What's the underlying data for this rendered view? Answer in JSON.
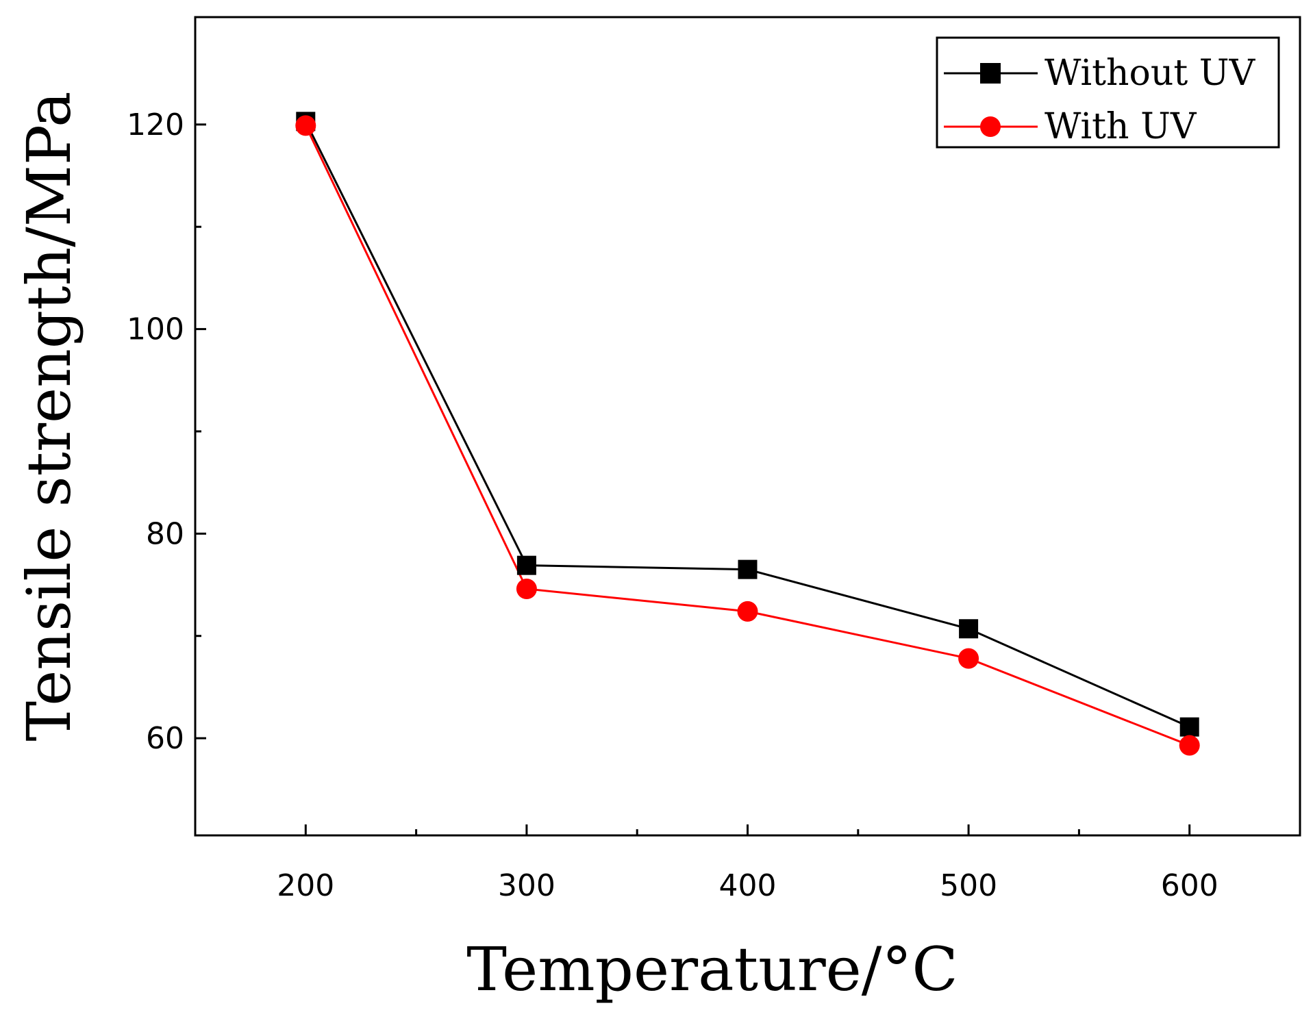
{
  "chart_data": {
    "type": "line",
    "title": "",
    "xlabel": "Temperature/°C",
    "ylabel": "Tensile strength/MPa",
    "x": [
      200,
      300,
      400,
      500,
      600
    ],
    "xlim": [
      150,
      650
    ],
    "ylim": [
      50.5,
      130.5
    ],
    "xticks": [
      200,
      300,
      400,
      500,
      600
    ],
    "xticks_minor": [
      250,
      350,
      450,
      550
    ],
    "yticks": [
      60,
      80,
      100,
      120
    ],
    "yticks_minor": [
      70,
      90,
      110
    ],
    "grid": false,
    "legend_position": "top-right",
    "series": [
      {
        "name": "Without UV",
        "color": "#000000",
        "marker": "square",
        "values": [
          120.3,
          76.9,
          76.5,
          70.7,
          61.1
        ]
      },
      {
        "name": "With UV",
        "color": "#ff0000",
        "marker": "circle",
        "values": [
          119.9,
          74.6,
          72.4,
          67.8,
          59.3
        ]
      }
    ]
  }
}
